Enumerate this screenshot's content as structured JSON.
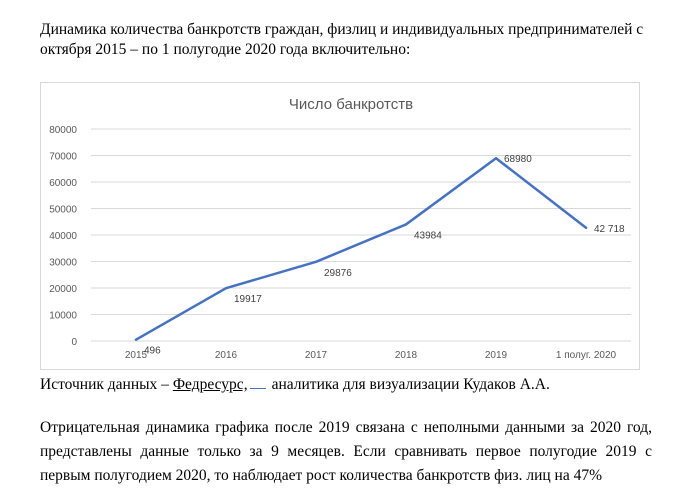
{
  "heading": "Динамика количества банкротств граждан, физлиц и индивидуальных предпринимателей с октября 2015 – по 1 полугодие 2020 года включительно:",
  "source": {
    "prefix": "Источник данных – ",
    "link": "Федресурс,",
    "suffix": "аналитика для визуализации Кудаков А.А."
  },
  "body": "Отрицательная динамика графика после 2019 связана с неполными данными за 2020 год, представлены данные только за 9 месяцев. Если сравнивать первое полугодие 2019 с первым полугодием 2020, то наблюдает рост количества банкротств физ. лиц на 47%",
  "colors": {
    "line": "#4472c4",
    "grid": "#d9d9d9",
    "title": "#595959",
    "axis_text": "#595959"
  },
  "chart_data": {
    "type": "line",
    "title": "Число банкротств",
    "categories": [
      "2015",
      "2016",
      "2017",
      "2018",
      "2019",
      "1 полуг. 2020"
    ],
    "series": [
      {
        "values": [
          496,
          19917,
          29876,
          43984,
          68980,
          42718
        ]
      }
    ],
    "data_labels": [
      "496",
      "19917",
      "29876",
      "43984",
      "68980",
      "42 718"
    ],
    "ylim": [
      0,
      80000
    ],
    "yticks": [
      "0",
      "10000",
      "20000",
      "30000",
      "40000",
      "50000",
      "60000",
      "70000",
      "80000"
    ],
    "grid": true,
    "legend": "none"
  }
}
